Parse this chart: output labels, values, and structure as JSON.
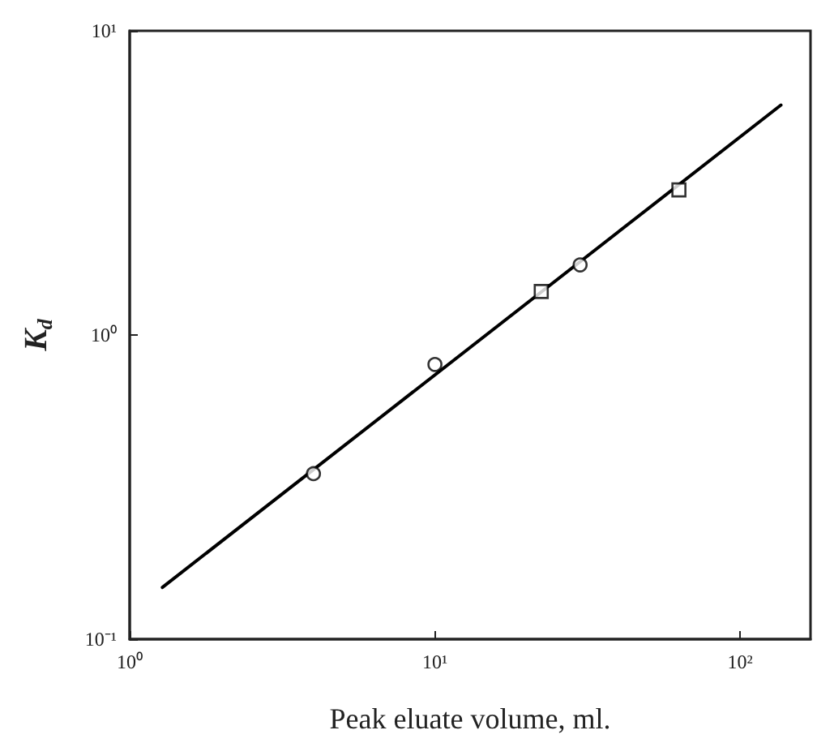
{
  "chart_data": {
    "type": "scatter",
    "xlabel": "Peak eluate volume, ml.",
    "ylabel": "K$_{d}$",
    "log": "xy",
    "grid": false,
    "xlim": [
      1,
      170
    ],
    "ylim": [
      0.1,
      10
    ],
    "xticks": [
      {
        "value": 1,
        "label": "10⁰"
      },
      {
        "value": 10,
        "label": "10¹"
      },
      {
        "value": 100,
        "label": "10²"
      }
    ],
    "yticks": [
      {
        "value": 0.1,
        "label": "10⁻¹"
      },
      {
        "value": 1,
        "label": "10⁰"
      },
      {
        "value": 10,
        "label": "10¹"
      }
    ],
    "series": [
      {
        "type": "scatter",
        "marker": "circle",
        "color": "#000000",
        "x": [
          4.0,
          10,
          29.9
        ],
        "values": [
          0.35,
          0.8,
          1.7
        ]
      },
      {
        "type": "scatter",
        "marker": "square",
        "color": "#000000",
        "x": [
          22.3,
          63
        ],
        "values": [
          1.39,
          3.0
        ]
      },
      {
        "type": "line",
        "marker": "none",
        "color": "#000000",
        "x": [
          1.28,
          136
        ],
        "values": [
          0.148,
          5.7
        ]
      }
    ]
  }
}
